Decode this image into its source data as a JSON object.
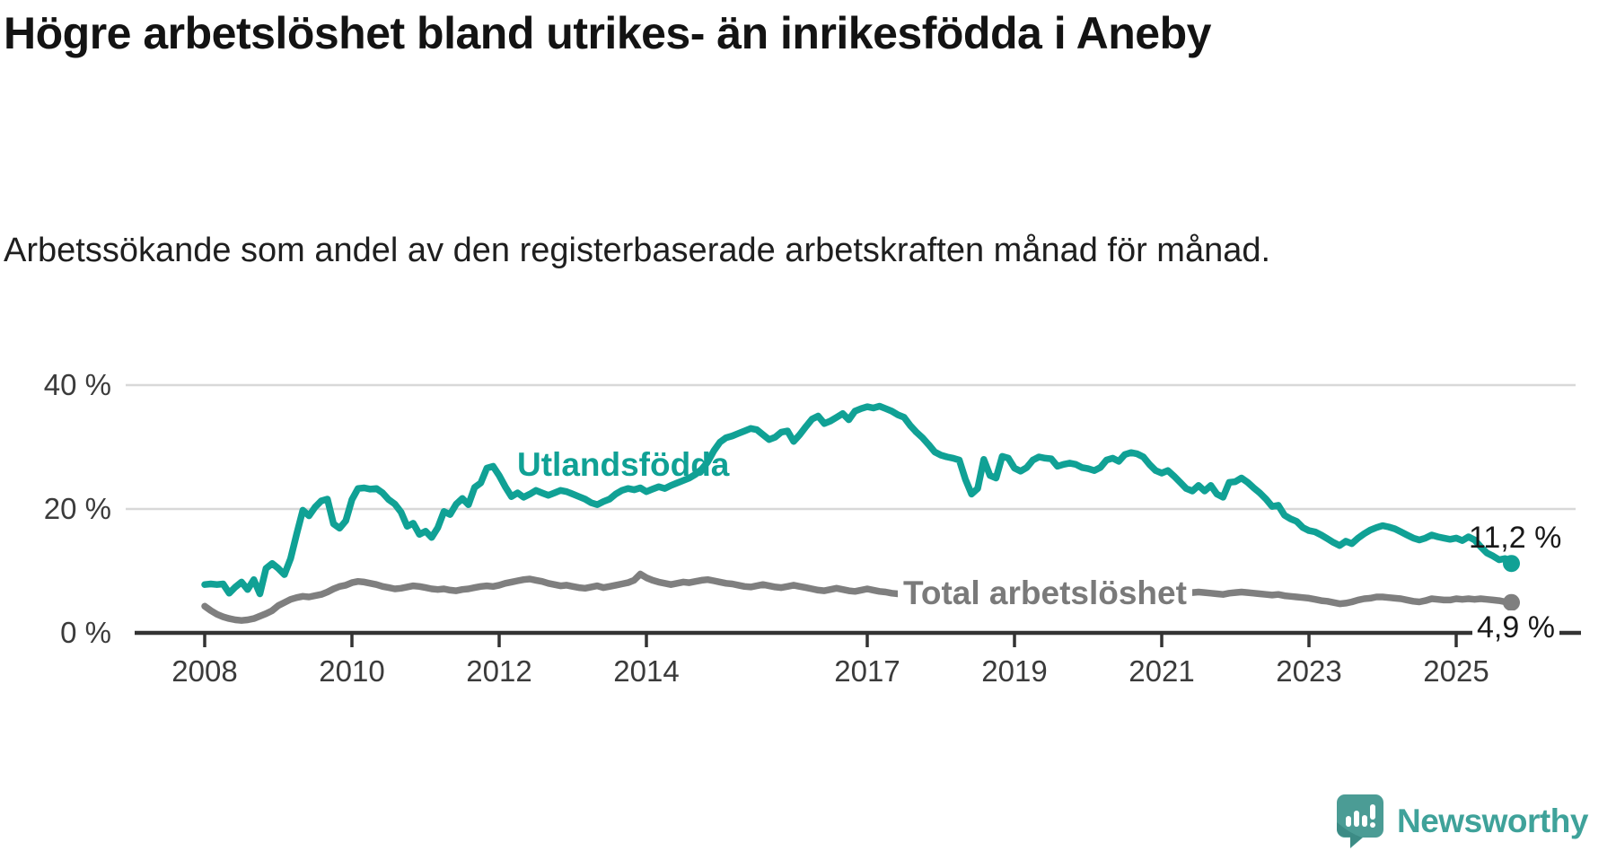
{
  "title": "Högre arbetslöshet bland utrikes- än inrikesfödda i Aneby",
  "subtitle": "Arbetssökande som andel av den registerbaserade arbetskraften månad för månad.",
  "branding": {
    "logo_text": "Newsworthy",
    "logo_icon": "speech-bubble-bar-chart"
  },
  "colors": {
    "series_utlandsfodda": "#10a195",
    "series_total": "#7f7f7f",
    "gridline": "#d8d8d8",
    "axis": "#333333",
    "logo_icon": "#4b9c95",
    "logo_icon_shade": "#3c8b85",
    "logo_text": "#3fa29a"
  },
  "chart_data": {
    "type": "line",
    "unit": "%",
    "freq": "monthly",
    "start": "2008-01",
    "end": "2025-10",
    "grid": "horizontal-only",
    "legend_position": "inline-labels",
    "ylim": [
      0,
      43
    ],
    "y_ticks": [
      {
        "value": 0,
        "label": "0 %"
      },
      {
        "value": 20,
        "label": "20 %"
      },
      {
        "value": 40,
        "label": "40 %"
      }
    ],
    "x_ticks": [
      {
        "year": 2008,
        "label": "2008"
      },
      {
        "year": 2010,
        "label": "2010"
      },
      {
        "year": 2012,
        "label": "2012"
      },
      {
        "year": 2014,
        "label": "2014"
      },
      {
        "year": 2017,
        "label": "2017"
      },
      {
        "year": 2019,
        "label": "2019"
      },
      {
        "year": 2021,
        "label": "2021"
      },
      {
        "year": 2023,
        "label": "2023"
      },
      {
        "year": 2025,
        "label": "2025"
      }
    ],
    "series": [
      {
        "name": "Utlandsfödda",
        "color": "#10a195",
        "end_label": "11,2 %",
        "end_value": 11.2,
        "values": [
          7.8,
          7.9,
          7.8,
          7.9,
          6.4,
          7.4,
          8.2,
          7.0,
          8.6,
          6.3,
          10.4,
          11.2,
          10.4,
          9.4,
          12.0,
          16.0,
          19.8,
          18.9,
          20.3,
          21.3,
          21.6,
          17.6,
          16.9,
          18.1,
          21.5,
          23.3,
          23.4,
          23.2,
          23.3,
          22.6,
          21.5,
          20.8,
          19.5,
          17.2,
          17.7,
          15.9,
          16.4,
          15.4,
          17.0,
          19.6,
          19.1,
          20.8,
          21.7,
          20.7,
          23.5,
          24.2,
          26.6,
          26.9,
          25.4,
          23.6,
          22.0,
          22.6,
          21.9,
          22.4,
          23.0,
          22.6,
          22.2,
          22.6,
          23.0,
          22.8,
          22.4,
          22.0,
          21.6,
          21.0,
          20.7,
          21.2,
          21.6,
          22.4,
          23.0,
          23.3,
          23.1,
          23.4,
          22.8,
          23.2,
          23.6,
          23.3,
          23.8,
          24.2,
          24.6,
          25.0,
          25.6,
          26.4,
          27.6,
          29.4,
          30.8,
          31.5,
          31.8,
          32.2,
          32.6,
          33.0,
          32.8,
          32.0,
          31.2,
          31.6,
          32.4,
          32.6,
          30.9,
          32.0,
          33.3,
          34.5,
          35.0,
          33.8,
          34.2,
          34.8,
          35.4,
          34.4,
          35.8,
          36.2,
          36.5,
          36.3,
          36.6,
          36.2,
          35.8,
          35.2,
          34.8,
          33.5,
          32.4,
          31.5,
          30.4,
          29.2,
          28.7,
          28.4,
          28.2,
          27.9,
          24.8,
          22.4,
          23.3,
          28.0,
          25.4,
          25.0,
          28.5,
          28.2,
          26.6,
          26.1,
          26.7,
          27.9,
          28.4,
          28.2,
          28.1,
          26.9,
          27.2,
          27.4,
          27.2,
          26.7,
          26.5,
          26.2,
          26.7,
          27.9,
          28.2,
          27.7,
          28.8,
          29.1,
          28.9,
          28.4,
          27.2,
          26.2,
          25.8,
          26.2,
          25.3,
          24.3,
          23.3,
          22.9,
          23.8,
          22.9,
          23.8,
          22.4,
          21.9,
          24.3,
          24.4,
          25.0,
          24.3,
          23.4,
          22.6,
          21.6,
          20.4,
          20.6,
          19.0,
          18.4,
          18.0,
          17.0,
          16.5,
          16.3,
          15.8,
          15.2,
          14.6,
          14.1,
          14.8,
          14.4,
          15.3,
          16.0,
          16.6,
          17.0,
          17.3,
          17.1,
          16.8,
          16.3,
          15.8,
          15.3,
          15.0,
          15.3,
          15.8,
          15.5,
          15.3,
          15.1,
          15.3,
          14.9,
          15.5,
          15.0,
          13.9,
          12.9,
          12.4,
          11.8,
          12.0,
          11.2
        ]
      },
      {
        "name": "Total arbetslöshet",
        "color": "#7f7f7f",
        "end_label": "4,9 %",
        "end_value": 4.9,
        "values": [
          4.3,
          3.6,
          3.0,
          2.6,
          2.3,
          2.1,
          2.0,
          2.1,
          2.3,
          2.7,
          3.1,
          3.6,
          4.4,
          4.9,
          5.4,
          5.7,
          5.9,
          5.8,
          6.0,
          6.2,
          6.6,
          7.1,
          7.5,
          7.7,
          8.1,
          8.3,
          8.2,
          8.0,
          7.8,
          7.5,
          7.3,
          7.1,
          7.2,
          7.4,
          7.6,
          7.5,
          7.3,
          7.1,
          7.0,
          7.1,
          6.9,
          6.8,
          7.0,
          7.1,
          7.3,
          7.5,
          7.6,
          7.5,
          7.7,
          8.0,
          8.2,
          8.4,
          8.6,
          8.7,
          8.5,
          8.3,
          8.0,
          7.8,
          7.6,
          7.7,
          7.5,
          7.3,
          7.2,
          7.4,
          7.6,
          7.3,
          7.5,
          7.7,
          7.9,
          8.1,
          8.5,
          9.5,
          8.9,
          8.5,
          8.2,
          8.0,
          7.8,
          8.0,
          8.2,
          8.1,
          8.3,
          8.5,
          8.6,
          8.4,
          8.2,
          8.0,
          7.9,
          7.7,
          7.5,
          7.4,
          7.6,
          7.8,
          7.6,
          7.4,
          7.3,
          7.5,
          7.7,
          7.5,
          7.3,
          7.1,
          6.9,
          6.8,
          7.0,
          7.2,
          7.0,
          6.8,
          6.7,
          6.9,
          7.1,
          6.9,
          6.7,
          6.6,
          6.4,
          6.3,
          6.5,
          6.7,
          6.5,
          6.4,
          6.3,
          6.4,
          6.6,
          6.4,
          6.3,
          6.2,
          6.1,
          6.0,
          6.2,
          6.4,
          6.3,
          6.2,
          6.1,
          6.2,
          6.4,
          6.3,
          6.2,
          6.1,
          6.0,
          6.1,
          6.3,
          6.4,
          6.3,
          6.2,
          6.1,
          6.2,
          6.3,
          6.2,
          6.4,
          6.8,
          7.0,
          7.1,
          7.2,
          7.1,
          7.0,
          6.9,
          6.8,
          6.7,
          6.8,
          6.9,
          6.8,
          6.7,
          6.6,
          6.5,
          6.6,
          6.5,
          6.4,
          6.3,
          6.2,
          6.4,
          6.5,
          6.6,
          6.5,
          6.4,
          6.3,
          6.2,
          6.1,
          6.2,
          6.0,
          5.9,
          5.8,
          5.7,
          5.6,
          5.4,
          5.2,
          5.1,
          4.9,
          4.7,
          4.8,
          5.0,
          5.3,
          5.5,
          5.6,
          5.8,
          5.8,
          5.7,
          5.6,
          5.5,
          5.3,
          5.1,
          5.0,
          5.2,
          5.5,
          5.4,
          5.3,
          5.3,
          5.5,
          5.4,
          5.5,
          5.4,
          5.5,
          5.4,
          5.3,
          5.2,
          5.0,
          4.9
        ]
      }
    ]
  }
}
